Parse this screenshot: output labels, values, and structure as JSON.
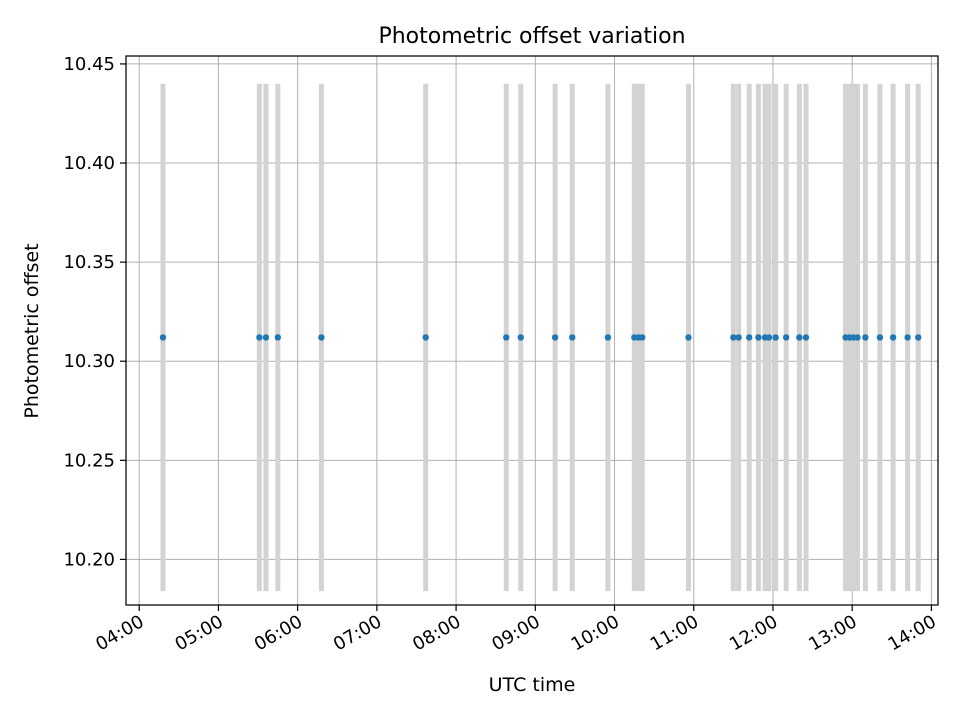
{
  "chart_data": {
    "type": "scatter",
    "title": "Photometric offset variation",
    "xlabel": "UTC time",
    "ylabel": "Photometric offset",
    "x_axis_type": "time",
    "xlim": [
      "03:50",
      "14:05"
    ],
    "ylim": [
      10.177,
      10.454
    ],
    "xticks": [
      "04:00",
      "05:00",
      "06:00",
      "07:00",
      "08:00",
      "09:00",
      "10:00",
      "11:00",
      "12:00",
      "13:00",
      "14:00"
    ],
    "yticks": [
      10.2,
      10.25,
      10.3,
      10.35,
      10.4,
      10.45
    ],
    "ytick_labels": [
      "10.20",
      "10.25",
      "10.30",
      "10.35",
      "10.40",
      "10.45"
    ],
    "grid": true,
    "error_bar_color": "#d3d3d3",
    "marker_color": "#1f77b4",
    "series": [
      {
        "x": [
          "04:18",
          "05:31",
          "05:36",
          "05:45",
          "06:18",
          "07:37",
          "08:38",
          "08:49",
          "09:15",
          "09:28",
          "09:55",
          "10:15",
          "10:18",
          "10:21",
          "10:56",
          "11:30",
          "11:34",
          "11:42",
          "11:49",
          "11:54",
          "11:57",
          "12:02",
          "12:10",
          "12:20",
          "12:25",
          "12:55",
          "12:58",
          "13:01",
          "13:04",
          "13:10",
          "13:21",
          "13:31",
          "13:42",
          "13:50"
        ],
        "y": [
          10.312,
          10.312,
          10.312,
          10.312,
          10.312,
          10.312,
          10.312,
          10.312,
          10.312,
          10.312,
          10.312,
          10.312,
          10.312,
          10.312,
          10.312,
          10.312,
          10.312,
          10.312,
          10.312,
          10.312,
          10.312,
          10.312,
          10.312,
          10.312,
          10.312,
          10.312,
          10.312,
          10.312,
          10.312,
          10.312,
          10.312,
          10.312,
          10.312,
          10.312
        ],
        "yerr": [
          0.128,
          0.128,
          0.128,
          0.128,
          0.128,
          0.128,
          0.128,
          0.128,
          0.128,
          0.128,
          0.128,
          0.128,
          0.128,
          0.128,
          0.128,
          0.128,
          0.128,
          0.128,
          0.128,
          0.128,
          0.128,
          0.128,
          0.128,
          0.128,
          0.128,
          0.128,
          0.128,
          0.128,
          0.128,
          0.128,
          0.128,
          0.128,
          0.128,
          0.128
        ]
      }
    ]
  }
}
